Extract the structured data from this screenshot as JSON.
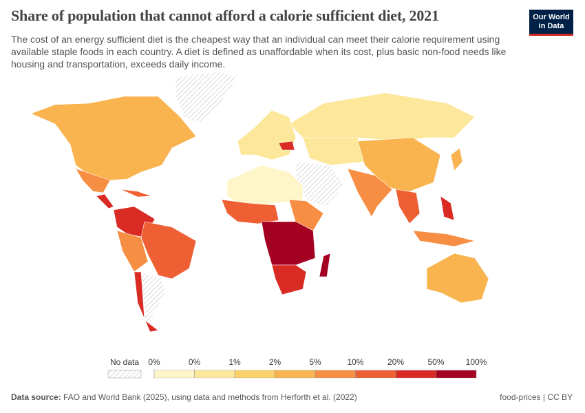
{
  "header": {
    "title": "Share of population that cannot afford a calorie sufficient diet, 2021",
    "subtitle": "The cost of an energy sufficient diet is the cheapest way that an individual can meet their calorie requirement using available staple foods in each country. A diet is defined as unaffordable when its cost, plus basic non-food needs like housing and transportation, exceeds daily income.",
    "logo": [
      "Our World",
      "in Data"
    ]
  },
  "legend": {
    "no_data": "No data",
    "labels": [
      "0%",
      "0%",
      "1%",
      "2%",
      "5%",
      "10%",
      "20%",
      "50%",
      "100%"
    ],
    "colors": [
      "#fef6c8",
      "#fde79a",
      "#fbd06b",
      "#f9b34f",
      "#f68f44",
      "#ef5f34",
      "#d92b24",
      "#a40022"
    ]
  },
  "footer": {
    "source_label": "Data source:",
    "source": "FAO and World Bank (2025), using data and methods from Herforth et al. (2022)",
    "right": "food-prices | CC BY"
  }
}
